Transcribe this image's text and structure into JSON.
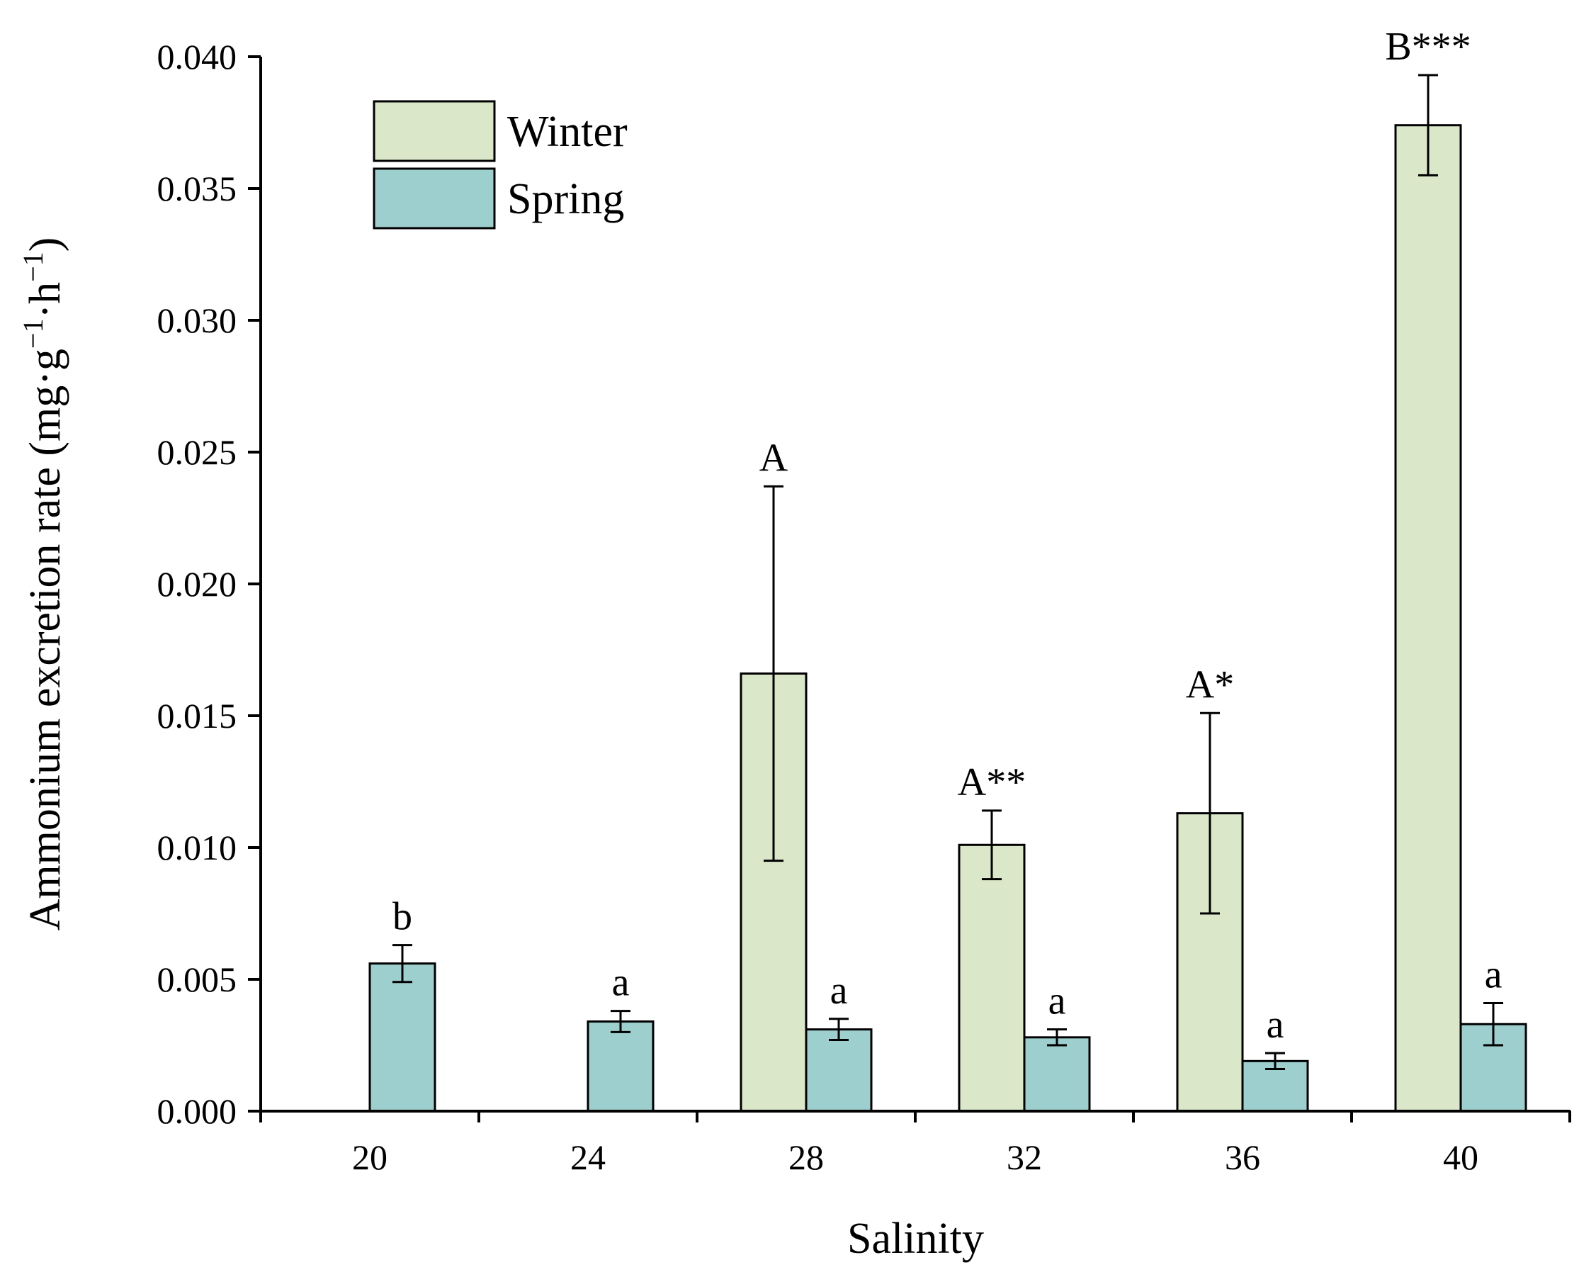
{
  "chart_data": {
    "type": "bar",
    "title": "",
    "xlabel": "Salinity",
    "ylabel_main": "Ammonium excretion rate (mg·g",
    "ylabel_sup1": "−1",
    "ylabel_mid": "·h",
    "ylabel_sup2": "−1",
    "ylabel_end": ")",
    "categories": [
      "20",
      "24",
      "28",
      "32",
      "36",
      "40"
    ],
    "ylim": [
      0,
      0.04
    ],
    "yticks": [
      0.0,
      0.005,
      0.01,
      0.015,
      0.02,
      0.025,
      0.03,
      0.035,
      0.04
    ],
    "ytick_labels": [
      "0.000",
      "0.005",
      "0.010",
      "0.015",
      "0.020",
      "0.025",
      "0.030",
      "0.035",
      "0.040"
    ],
    "legend_position": "top-left",
    "series": [
      {
        "name": "Winter",
        "color": "#dbe7c9",
        "values": [
          null,
          null,
          0.0166,
          0.0101,
          0.0113,
          0.0374
        ],
        "errors": [
          null,
          null,
          0.0071,
          0.0013,
          0.0038,
          0.0019
        ],
        "labels": [
          "",
          "",
          "A",
          "A**",
          "A*",
          "B***"
        ]
      },
      {
        "name": "Spring",
        "color": "#9ecfcf",
        "values": [
          0.0056,
          0.0034,
          0.0031,
          0.0028,
          0.0019,
          0.0033
        ],
        "errors": [
          0.0007,
          0.0004,
          0.0004,
          0.0003,
          0.0003,
          0.0008
        ],
        "labels": [
          "b",
          "a",
          "a",
          "a",
          "a",
          "a"
        ]
      }
    ]
  }
}
